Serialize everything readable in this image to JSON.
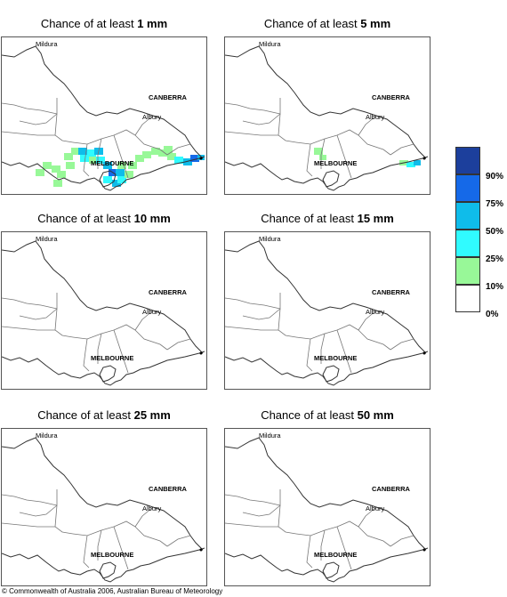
{
  "panels": [
    {
      "prefix": "Chance of at least ",
      "amount": "1 mm",
      "rain": "heavy"
    },
    {
      "prefix": "Chance of at least ",
      "amount": "5 mm",
      "rain": "light"
    },
    {
      "prefix": "Chance of at least ",
      "amount": "10 mm",
      "rain": "none"
    },
    {
      "prefix": "Chance of at least ",
      "amount": "15 mm",
      "rain": "none"
    },
    {
      "prefix": "Chance of at least ",
      "amount": "25 mm",
      "rain": "none"
    },
    {
      "prefix": "Chance of at least ",
      "amount": "50 mm",
      "rain": "none"
    }
  ],
  "map_labels": {
    "mildura": "Mildura",
    "canberra": "CANBERRA",
    "albury": "Albury",
    "melbourne": "MELBOURNE"
  },
  "legend": {
    "labels": [
      "90%",
      "75%",
      "50%",
      "25%",
      "10%",
      "0%"
    ],
    "colors": [
      "#1c3f9c",
      "#1569e8",
      "#0fbcea",
      "#30fbff",
      "#98f898",
      "#ffffff"
    ]
  },
  "footer": "© Commonwealth of Australia 2006, Australian Bureau of Meteorology"
}
